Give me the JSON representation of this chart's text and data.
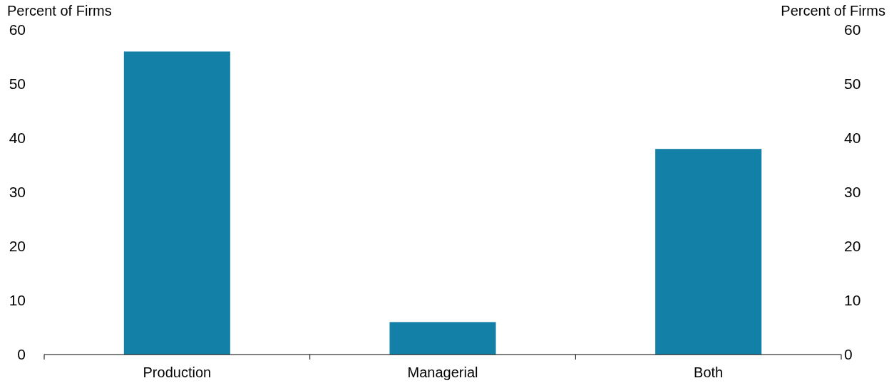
{
  "chart_data": {
    "type": "bar",
    "ylabel": "Percent of Firms",
    "y2label": "Percent of Firms",
    "categories": [
      "Production",
      "Managerial",
      "Both"
    ],
    "values": [
      56,
      6,
      38
    ],
    "color": "#1380a8",
    "ylim": [
      0,
      60
    ],
    "yticks": [
      0,
      10,
      20,
      30,
      40,
      50,
      60
    ],
    "y2lim": [
      0,
      60
    ],
    "y2ticks": [
      0,
      10,
      20,
      30,
      40,
      50,
      60
    ],
    "grid": false
  }
}
